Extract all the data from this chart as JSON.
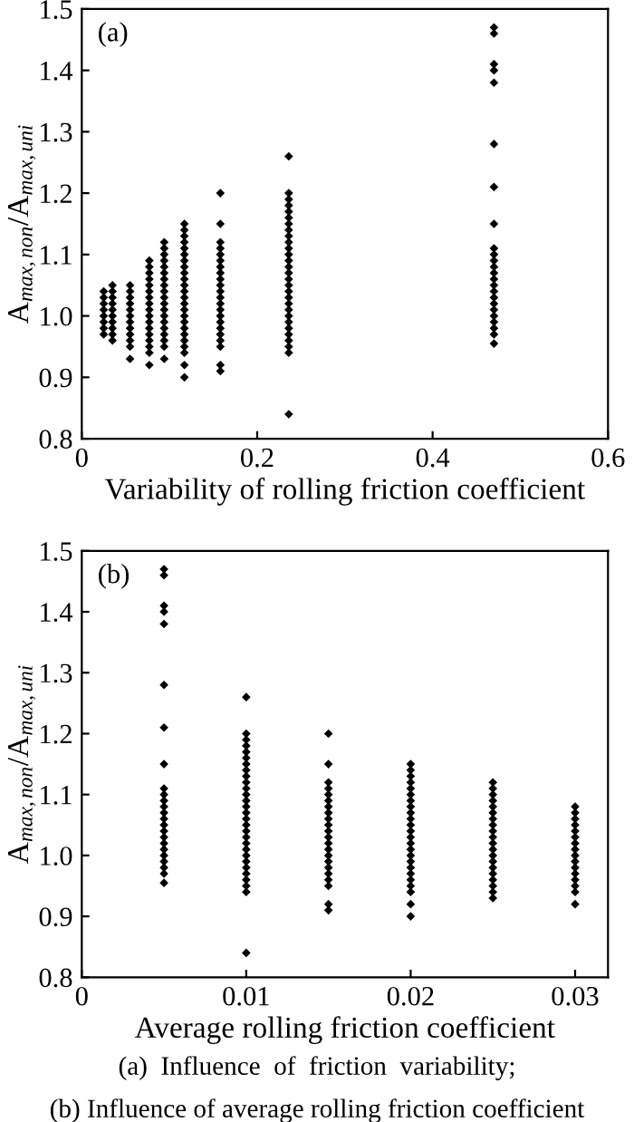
{
  "chart_data": [
    {
      "type": "scatter",
      "xlabel": "Variability of rolling friction coefficient",
      "ylabel": "A$_{max,non}$/A$_{max,uni}$",
      "annotations": [
        "(a)"
      ],
      "xlim": [
        0,
        0.6
      ],
      "ylim": [
        0.8,
        1.5
      ],
      "xticks": [
        0,
        0.2,
        0.4,
        0.6
      ],
      "yticks": [
        0.8,
        0.9,
        {
          "value": 1,
          "label": "1.0"
        },
        1.1,
        1.2,
        1.3,
        1.4,
        1.5
      ],
      "marker": "diamond",
      "grid": false,
      "series": [
        {
          "color": "#000000",
          "x": [
            0.025,
            0.025,
            0.025,
            0.025,
            0.025,
            0.025,
            0.025,
            0.025
          ],
          "values": [
            0.97,
            0.98,
            0.99,
            1.0,
            1.01,
            1.02,
            1.03,
            1.04
          ]
        },
        {
          "color": "#000000",
          "x": [
            0.035,
            0.035,
            0.035,
            0.035,
            0.035,
            0.035,
            0.035,
            0.035,
            0.035,
            0.035
          ],
          "values": [
            0.96,
            0.97,
            0.98,
            0.99,
            1.0,
            1.01,
            1.02,
            1.03,
            1.04,
            1.05
          ]
        },
        {
          "color": "#000000",
          "x": [
            0.055,
            0.055,
            0.055,
            0.055,
            0.055,
            0.055,
            0.055,
            0.055,
            0.055,
            0.055,
            0.055,
            0.055
          ],
          "values": [
            0.93,
            0.95,
            0.96,
            0.97,
            0.98,
            0.99,
            1.0,
            1.01,
            1.02,
            1.03,
            1.04,
            1.05
          ]
        },
        {
          "color": "#000000",
          "x": [
            0.077,
            0.077,
            0.077,
            0.077,
            0.077,
            0.077,
            0.077,
            0.077,
            0.077,
            0.077,
            0.077,
            0.077,
            0.077,
            0.077,
            0.077,
            0.077,
            0.077
          ],
          "values": [
            0.92,
            0.94,
            0.95,
            0.96,
            0.97,
            0.98,
            0.99,
            1.0,
            1.01,
            1.02,
            1.03,
            1.04,
            1.05,
            1.06,
            1.07,
            1.08,
            1.09
          ]
        },
        {
          "color": "#000000",
          "x": [
            0.094,
            0.094,
            0.094,
            0.094,
            0.094,
            0.094,
            0.094,
            0.094,
            0.094,
            0.094,
            0.094,
            0.094,
            0.094,
            0.094,
            0.094,
            0.094,
            0.094,
            0.094,
            0.094
          ],
          "values": [
            0.93,
            0.95,
            0.96,
            0.97,
            0.98,
            0.99,
            1.0,
            1.01,
            1.02,
            1.03,
            1.04,
            1.05,
            1.06,
            1.07,
            1.08,
            1.09,
            1.1,
            1.11,
            1.12
          ]
        },
        {
          "color": "#000000",
          "x": [
            0.117,
            0.117,
            0.117,
            0.117,
            0.117,
            0.117,
            0.117,
            0.117,
            0.117,
            0.117,
            0.117,
            0.117,
            0.117,
            0.117,
            0.117,
            0.117,
            0.117,
            0.117,
            0.117,
            0.117,
            0.117,
            0.117,
            0.117,
            0.117
          ],
          "values": [
            0.9,
            0.92,
            0.94,
            0.95,
            0.96,
            0.97,
            0.98,
            0.99,
            1.0,
            1.01,
            1.02,
            1.03,
            1.04,
            1.05,
            1.06,
            1.07,
            1.08,
            1.09,
            1.1,
            1.11,
            1.12,
            1.13,
            1.14,
            1.15
          ]
        },
        {
          "color": "#000000",
          "x": [
            0.158,
            0.158,
            0.158,
            0.158,
            0.158,
            0.158,
            0.158,
            0.158,
            0.158,
            0.158,
            0.158,
            0.158,
            0.158,
            0.158,
            0.158,
            0.158,
            0.158,
            0.158,
            0.158,
            0.158,
            0.158,
            0.158
          ],
          "values": [
            0.91,
            0.92,
            0.95,
            0.96,
            0.97,
            0.98,
            0.99,
            1.0,
            1.01,
            1.02,
            1.03,
            1.04,
            1.05,
            1.06,
            1.07,
            1.08,
            1.09,
            1.1,
            1.11,
            1.12,
            1.15,
            1.2
          ]
        },
        {
          "color": "#000000",
          "x": [
            0.236,
            0.236,
            0.236,
            0.236,
            0.236,
            0.236,
            0.236,
            0.236,
            0.236,
            0.236,
            0.236,
            0.236,
            0.236,
            0.236,
            0.236,
            0.236,
            0.236,
            0.236,
            0.236,
            0.236,
            0.236,
            0.236,
            0.236,
            0.236,
            0.236,
            0.236,
            0.236,
            0.236,
            0.236
          ],
          "values": [
            0.84,
            0.94,
            0.95,
            0.96,
            0.97,
            0.98,
            0.99,
            1.0,
            1.01,
            1.02,
            1.03,
            1.04,
            1.05,
            1.06,
            1.07,
            1.08,
            1.09,
            1.1,
            1.11,
            1.12,
            1.13,
            1.14,
            1.15,
            1.16,
            1.17,
            1.18,
            1.19,
            1.2,
            1.26
          ]
        },
        {
          "color": "#000000",
          "x": [
            0.47,
            0.47,
            0.47,
            0.47,
            0.47,
            0.47,
            0.47,
            0.47,
            0.47,
            0.47,
            0.47,
            0.47,
            0.47,
            0.47,
            0.47,
            0.47,
            0.47,
            0.47,
            0.47,
            0.47,
            0.47,
            0.47,
            0.47,
            0.47
          ],
          "values": [
            0.955,
            0.97,
            0.98,
            0.99,
            1.0,
            1.01,
            1.02,
            1.03,
            1.04,
            1.05,
            1.06,
            1.07,
            1.08,
            1.09,
            1.1,
            1.11,
            1.15,
            1.21,
            1.28,
            1.38,
            1.4,
            1.41,
            1.46,
            1.47
          ]
        }
      ]
    },
    {
      "type": "scatter",
      "xlabel": "Average rolling friction coefficient",
      "ylabel": "A$_{max,non}$/A$_{max,uni}$",
      "annotations": [
        "(b)",
        "(a)  Influence  of  friction  variability;",
        "(b) Influence of average rolling friction coefficient"
      ],
      "xlim": [
        0,
        0.032
      ],
      "ylim": [
        0.8,
        1.5
      ],
      "xticks": [
        0,
        0.01,
        0.02,
        0.03
      ],
      "yticks": [
        0.8,
        0.9,
        {
          "value": 1,
          "label": "1.0"
        },
        1.1,
        1.2,
        1.3,
        1.4,
        1.5
      ],
      "marker": "diamond",
      "grid": false,
      "series": [
        {
          "color": "#000000",
          "x": [
            0.005,
            0.005,
            0.005,
            0.005,
            0.005,
            0.005,
            0.005,
            0.005,
            0.005,
            0.005,
            0.005,
            0.005,
            0.005,
            0.005,
            0.005,
            0.005,
            0.005,
            0.005,
            0.005,
            0.005,
            0.005,
            0.005,
            0.005,
            0.005
          ],
          "values": [
            0.955,
            0.97,
            0.98,
            0.99,
            1.0,
            1.01,
            1.02,
            1.03,
            1.04,
            1.05,
            1.06,
            1.07,
            1.08,
            1.09,
            1.1,
            1.11,
            1.15,
            1.21,
            1.28,
            1.38,
            1.4,
            1.41,
            1.46,
            1.47
          ]
        },
        {
          "color": "#000000",
          "x": [
            0.01,
            0.01,
            0.01,
            0.01,
            0.01,
            0.01,
            0.01,
            0.01,
            0.01,
            0.01,
            0.01,
            0.01,
            0.01,
            0.01,
            0.01,
            0.01,
            0.01,
            0.01,
            0.01,
            0.01,
            0.01,
            0.01,
            0.01,
            0.01,
            0.01,
            0.01,
            0.01,
            0.01,
            0.01
          ],
          "values": [
            0.84,
            0.94,
            0.95,
            0.96,
            0.97,
            0.98,
            0.99,
            1.0,
            1.01,
            1.02,
            1.03,
            1.04,
            1.05,
            1.06,
            1.07,
            1.08,
            1.09,
            1.1,
            1.11,
            1.12,
            1.13,
            1.14,
            1.15,
            1.16,
            1.17,
            1.18,
            1.19,
            1.2,
            1.26
          ]
        },
        {
          "color": "#000000",
          "x": [
            0.015,
            0.015,
            0.015,
            0.015,
            0.015,
            0.015,
            0.015,
            0.015,
            0.015,
            0.015,
            0.015,
            0.015,
            0.015,
            0.015,
            0.015,
            0.015,
            0.015,
            0.015,
            0.015,
            0.015,
            0.015,
            0.015
          ],
          "values": [
            0.91,
            0.92,
            0.95,
            0.96,
            0.97,
            0.98,
            0.99,
            1.0,
            1.01,
            1.02,
            1.03,
            1.04,
            1.05,
            1.06,
            1.07,
            1.08,
            1.09,
            1.1,
            1.11,
            1.12,
            1.15,
            1.2
          ]
        },
        {
          "color": "#000000",
          "x": [
            0.02,
            0.02,
            0.02,
            0.02,
            0.02,
            0.02,
            0.02,
            0.02,
            0.02,
            0.02,
            0.02,
            0.02,
            0.02,
            0.02,
            0.02,
            0.02,
            0.02,
            0.02,
            0.02,
            0.02,
            0.02,
            0.02,
            0.02,
            0.02
          ],
          "values": [
            0.9,
            0.92,
            0.94,
            0.95,
            0.96,
            0.97,
            0.98,
            0.99,
            1.0,
            1.01,
            1.02,
            1.03,
            1.04,
            1.05,
            1.06,
            1.07,
            1.08,
            1.09,
            1.1,
            1.11,
            1.12,
            1.13,
            1.14,
            1.15
          ]
        },
        {
          "color": "#000000",
          "x": [
            0.025,
            0.025,
            0.025,
            0.025,
            0.025,
            0.025,
            0.025,
            0.025,
            0.025,
            0.025,
            0.025,
            0.025,
            0.025,
            0.025,
            0.025,
            0.025,
            0.025,
            0.025,
            0.025,
            0.025
          ],
          "values": [
            0.93,
            0.94,
            0.95,
            0.96,
            0.97,
            0.98,
            0.99,
            1.0,
            1.01,
            1.02,
            1.03,
            1.04,
            1.05,
            1.06,
            1.07,
            1.08,
            1.09,
            1.1,
            1.11,
            1.12
          ]
        },
        {
          "color": "#000000",
          "x": [
            0.03,
            0.03,
            0.03,
            0.03,
            0.03,
            0.03,
            0.03,
            0.03,
            0.03,
            0.03,
            0.03,
            0.03,
            0.03,
            0.03,
            0.03,
            0.03
          ],
          "values": [
            0.92,
            0.94,
            0.95,
            0.96,
            0.97,
            0.98,
            0.99,
            1.0,
            1.01,
            1.02,
            1.03,
            1.04,
            1.05,
            1.06,
            1.07,
            1.08
          ]
        }
      ]
    }
  ]
}
